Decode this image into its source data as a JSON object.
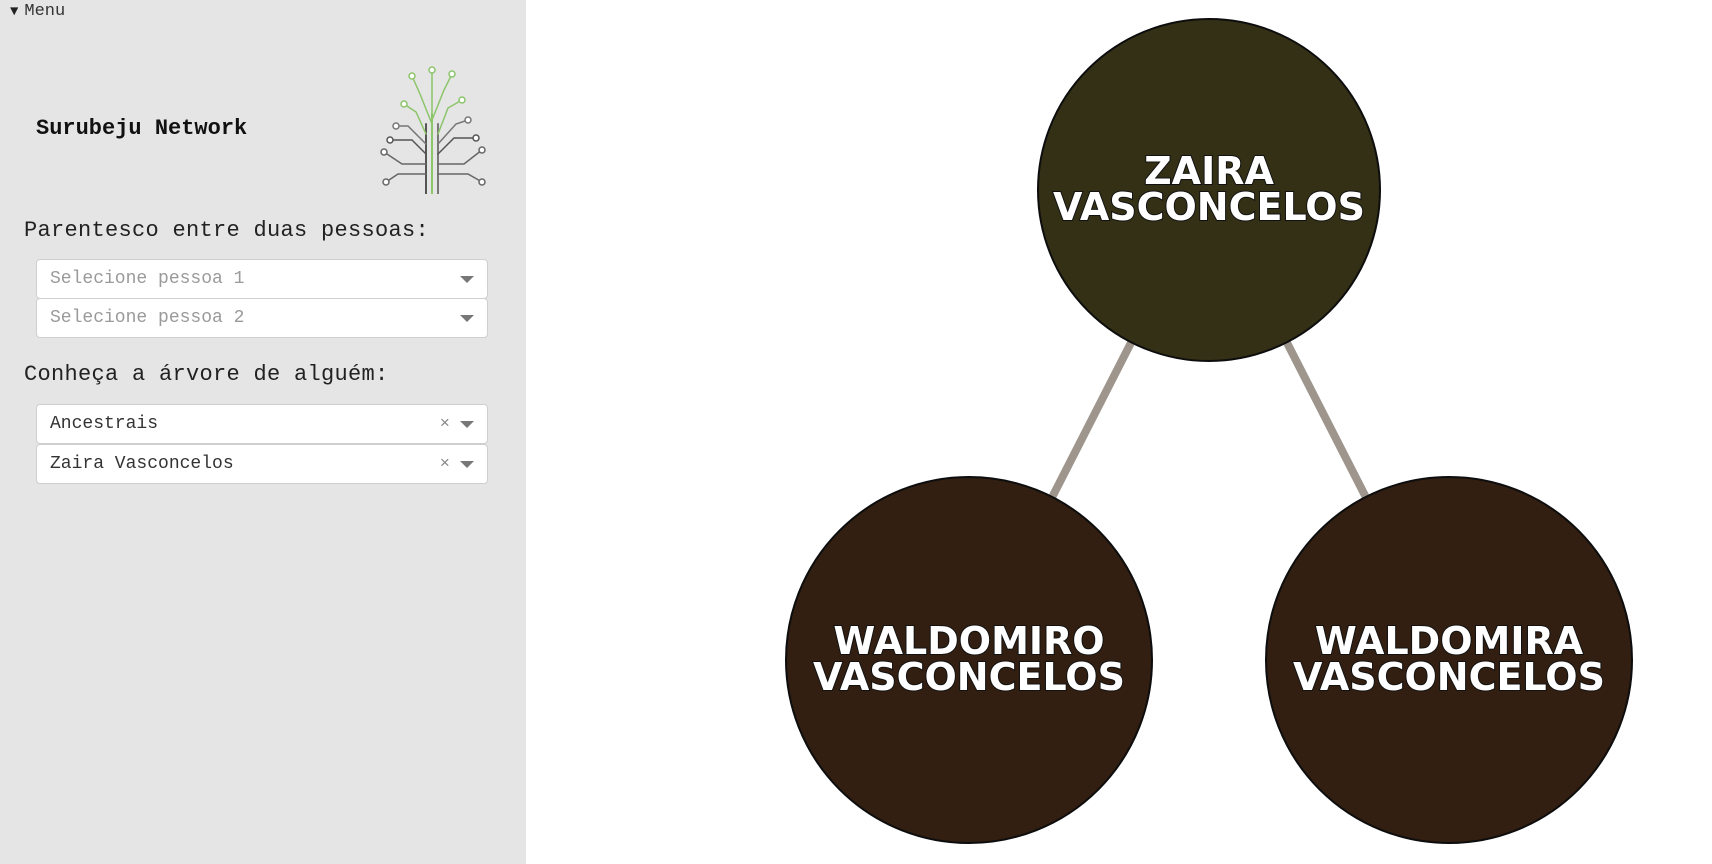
{
  "sidebar": {
    "menu_label": "Menu",
    "brand": "Surubeju Network",
    "logo_icon": "circuit-tree-logo",
    "relationship_label": "Parentesco entre duas pessoas:",
    "person1": {
      "placeholder": "Selecione pessoa 1",
      "value": ""
    },
    "person2": {
      "placeholder": "Selecione pessoa 2",
      "value": ""
    },
    "tree_label": "Conheça a árvore de alguém:",
    "tree_type": {
      "value": "Ancestrais",
      "clear": "×"
    },
    "tree_person": {
      "value": "Zaira Vasconcelos",
      "clear": "×"
    }
  },
  "graph": {
    "nodes": [
      {
        "id": "zaira",
        "line1": "ZAIRA",
        "line2": "VASCONCELOS",
        "color": "#333016"
      },
      {
        "id": "waldomiro",
        "line1": "WALDOMIRO",
        "line2": "VASCONCELOS",
        "color": "#321f11"
      },
      {
        "id": "waldomira",
        "line1": "WALDOMIRA",
        "line2": "VASCONCELOS",
        "color": "#321f11"
      }
    ],
    "edges": [
      {
        "from": "zaira",
        "to": "waldomiro"
      },
      {
        "from": "zaira",
        "to": "waldomira"
      }
    ],
    "edge_color": "#9e958c"
  }
}
